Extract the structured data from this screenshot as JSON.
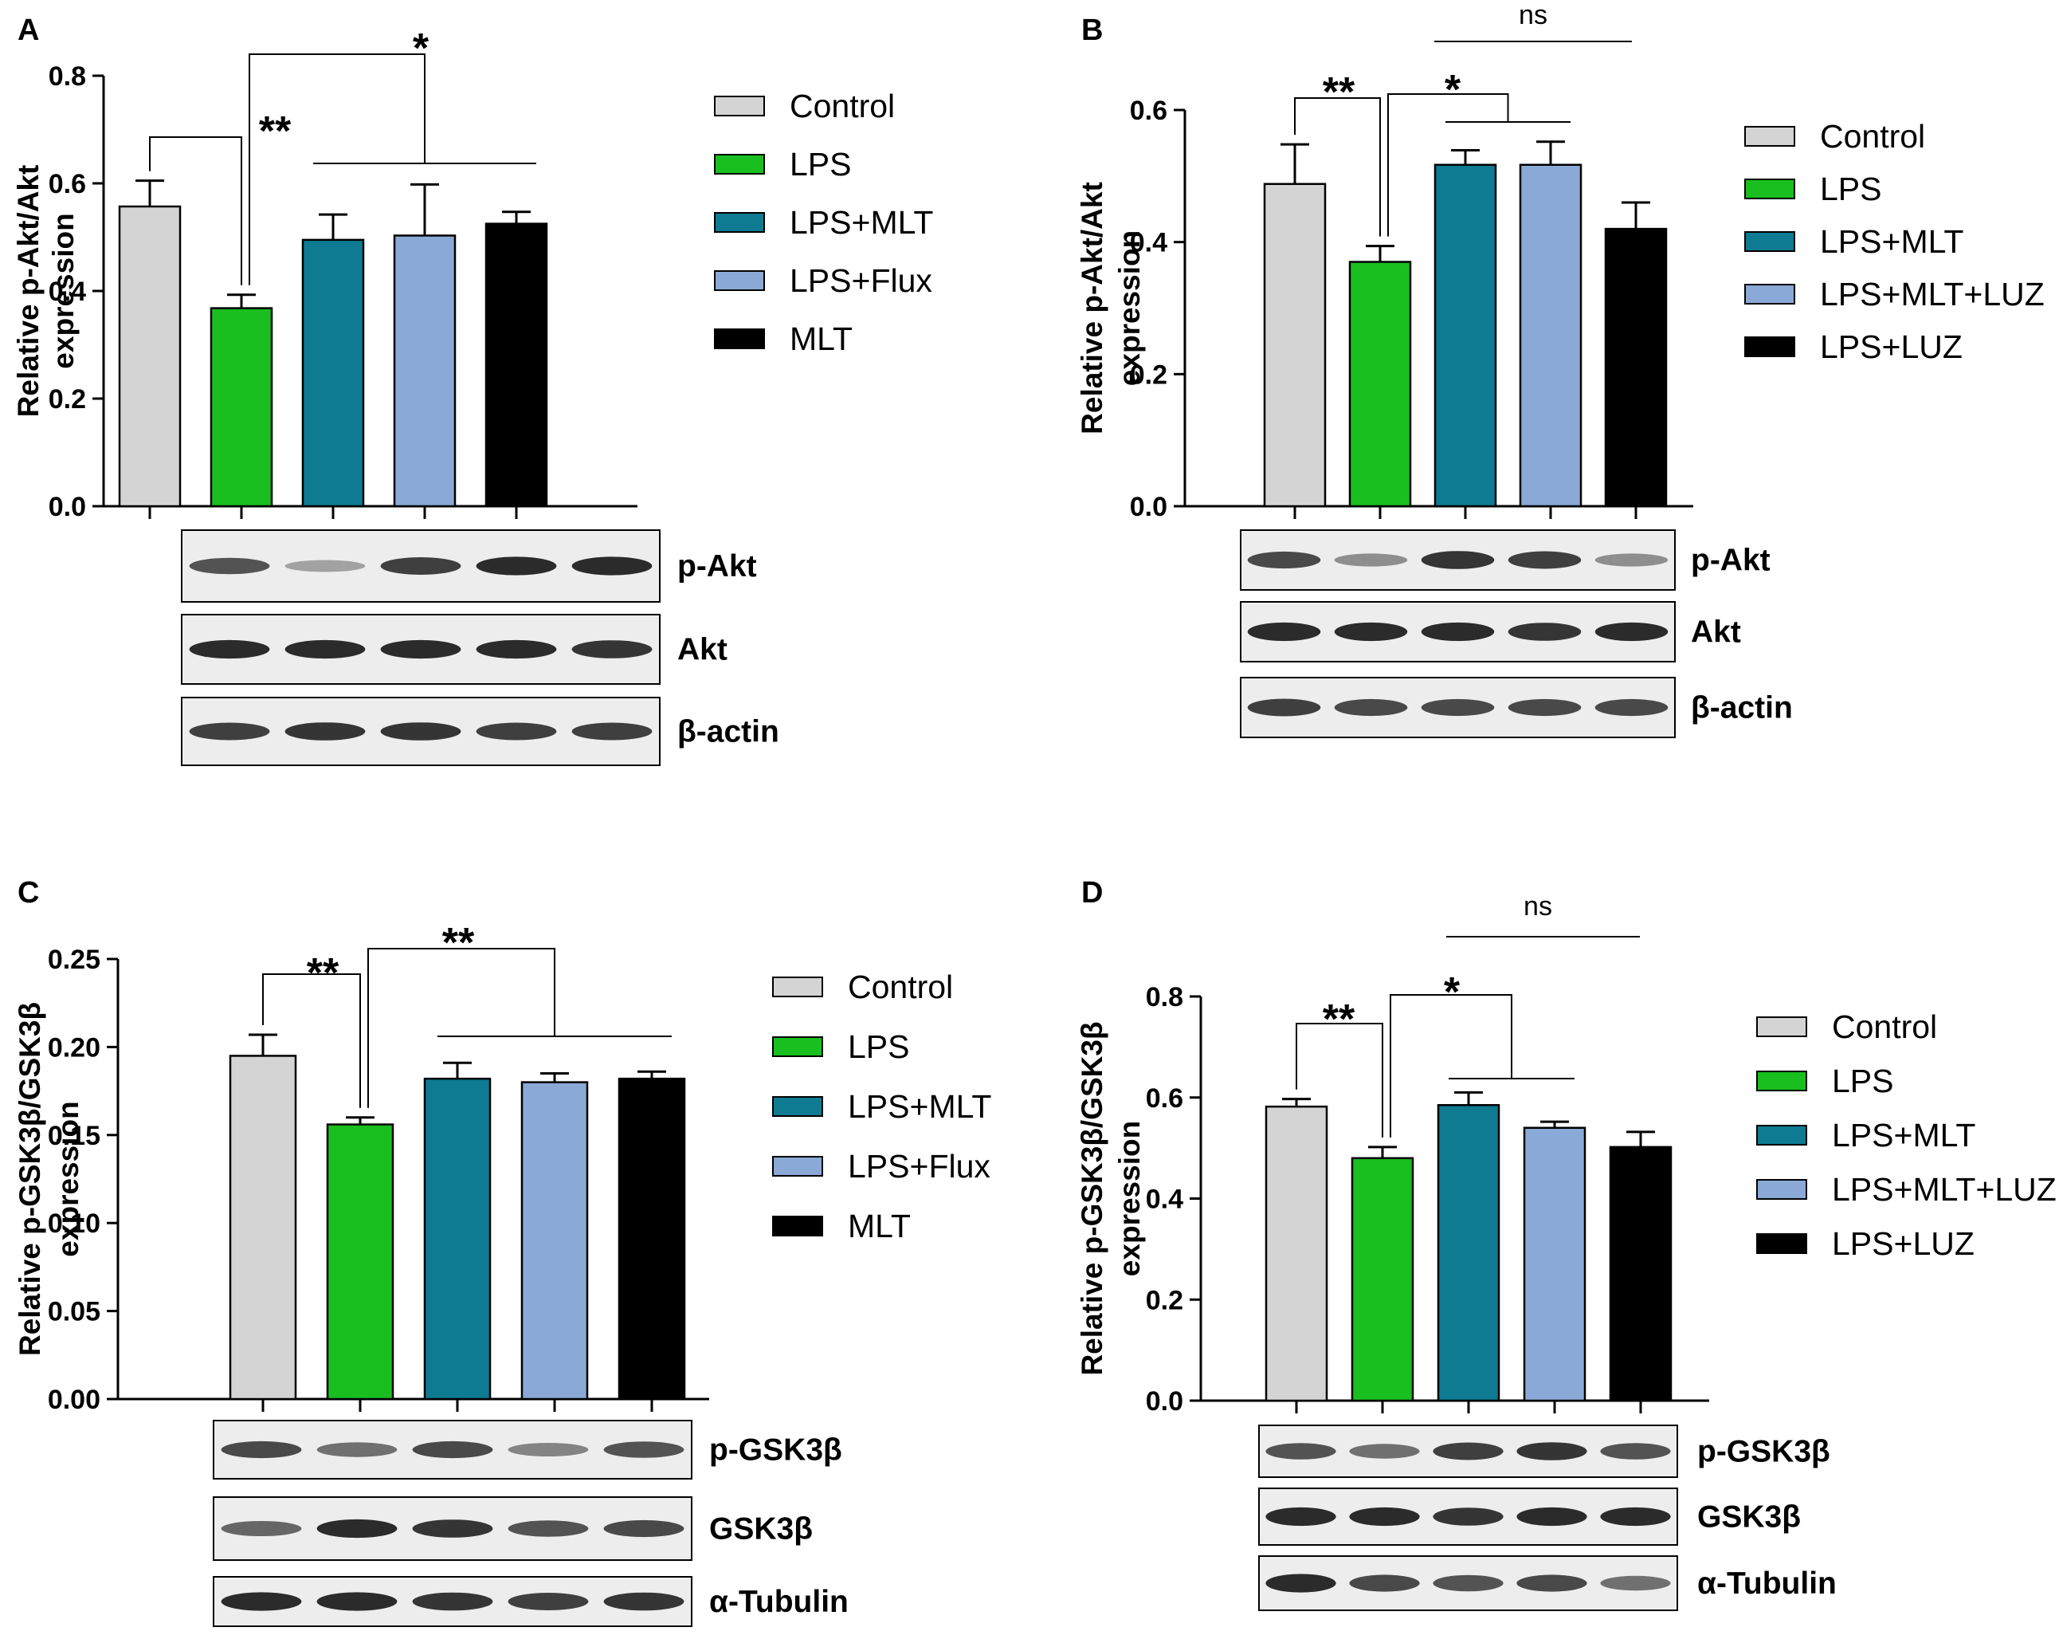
{
  "colors": {
    "Control": "#d4d4d4",
    "LPS": "#19bf1f",
    "LPS+MLT": "#0e7b92",
    "LPS+Flux": "#8aa9d6",
    "LPS+MLT+LUZ": "#8aa9d6",
    "MLT": "#000000",
    "LPS+LUZ": "#000000"
  },
  "chart_data": [
    {
      "panel": "A",
      "type": "bar",
      "ylabel": [
        "Relative p-Akt/Akt",
        "expression"
      ],
      "ylim": [
        0,
        0.8
      ],
      "yticks": [
        "0.0",
        "0.2",
        "0.4",
        "0.6",
        "0.8"
      ],
      "categories": [
        "Control",
        "LPS",
        "LPS+MLT",
        "LPS+Flux",
        "MLT"
      ],
      "values": [
        0.557,
        0.368,
        0.495,
        0.503,
        0.525
      ],
      "errors": [
        0.048,
        0.025,
        0.047,
        0.095,
        0.022
      ],
      "legend": [
        "Control",
        "LPS",
        "LPS+MLT",
        "LPS+Flux",
        "MLT"
      ],
      "significance": [
        "**",
        "*"
      ],
      "blots": [
        "p-Akt",
        "Akt",
        "β-actin"
      ]
    },
    {
      "panel": "B",
      "type": "bar",
      "ylabel": [
        "Relative p-Akt/Akt",
        "expression"
      ],
      "ylim": [
        0,
        0.6
      ],
      "yticks": [
        "0.0",
        "0.2",
        "0.4",
        "0.6"
      ],
      "categories": [
        "Control",
        "LPS",
        "LPS+MLT",
        "LPS+MLT+LUZ",
        "LPS+LUZ"
      ],
      "values": [
        0.488,
        0.37,
        0.517,
        0.517,
        0.42
      ],
      "errors": [
        0.06,
        0.024,
        0.022,
        0.035,
        0.04
      ],
      "legend": [
        "Control",
        "LPS",
        "LPS+MLT",
        "LPS+MLT+LUZ",
        "LPS+LUZ"
      ],
      "significance": [
        "**",
        "*",
        "ns"
      ],
      "blots": [
        "p-Akt",
        "Akt",
        "β-actin"
      ]
    },
    {
      "panel": "C",
      "type": "bar",
      "ylabel": [
        "Relative p-GSK3β/GSK3β",
        "expression"
      ],
      "ylim": [
        0,
        0.25
      ],
      "yticks": [
        "0.00",
        "0.05",
        "0.10",
        "0.15",
        "0.20",
        "0.25"
      ],
      "categories": [
        "Control",
        "LPS",
        "LPS+MLT",
        "LPS+Flux",
        "MLT"
      ],
      "values": [
        0.195,
        0.156,
        0.182,
        0.18,
        0.182
      ],
      "errors": [
        0.012,
        0.004,
        0.009,
        0.005,
        0.004
      ],
      "legend": [
        "Control",
        "LPS",
        "LPS+MLT",
        "LPS+Flux",
        "MLT"
      ],
      "significance": [
        "**",
        "**"
      ],
      "blots": [
        "p-GSK3β",
        "GSK3β",
        "α-Tubulin"
      ]
    },
    {
      "panel": "D",
      "type": "bar",
      "ylabel": [
        "Relative p-GSK3β/GSK3β",
        "expression"
      ],
      "ylim": [
        0,
        0.8
      ],
      "yticks": [
        "0.0",
        "0.2",
        "0.4",
        "0.6",
        "0.8"
      ],
      "categories": [
        "Control",
        "LPS",
        "LPS+MLT",
        "LPS+MLT+LUZ",
        "LPS+LUZ"
      ],
      "values": [
        0.582,
        0.48,
        0.585,
        0.54,
        0.502
      ],
      "errors": [
        0.015,
        0.022,
        0.025,
        0.012,
        0.03
      ],
      "legend": [
        "Control",
        "LPS",
        "LPS+MLT",
        "LPS+MLT+LUZ",
        "LPS+LUZ"
      ],
      "significance": [
        "**",
        "*",
        "ns"
      ],
      "blots": [
        "p-GSK3β",
        "GSK3β",
        "α-Tubulin"
      ]
    }
  ]
}
